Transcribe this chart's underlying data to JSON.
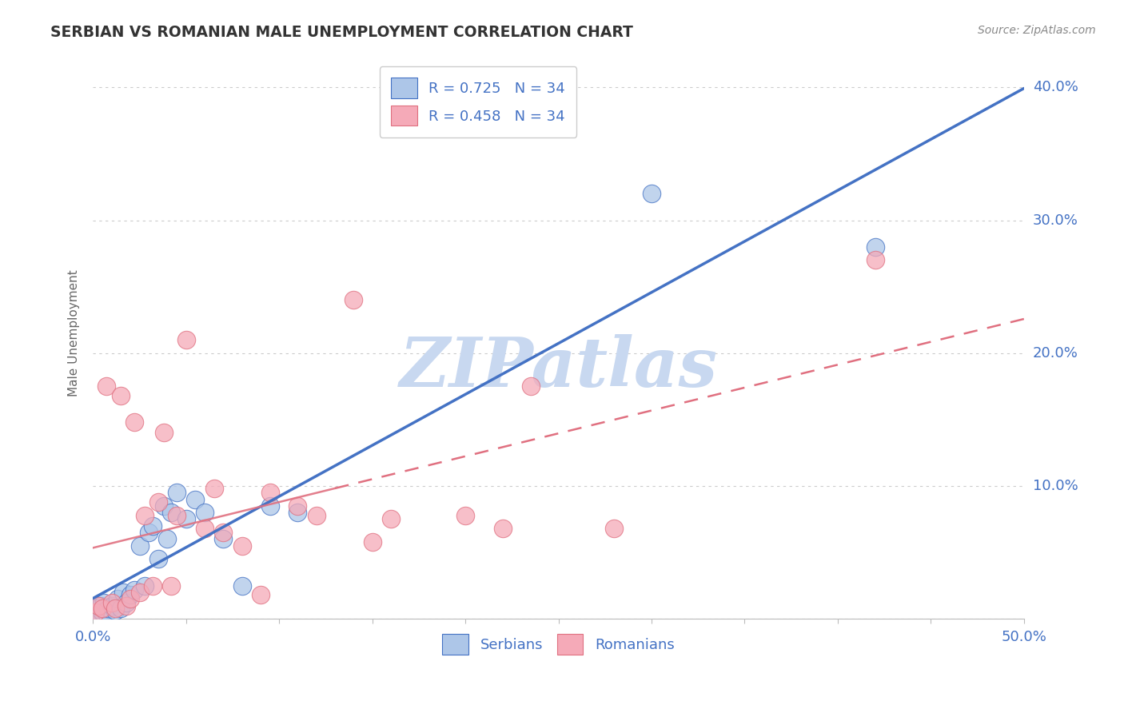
{
  "title": "SERBIAN VS ROMANIAN MALE UNEMPLOYMENT CORRELATION CHART",
  "source": "Source: ZipAtlas.com",
  "ylabel": "Male Unemployment",
  "xlim": [
    0.0,
    0.5
  ],
  "ylim": [
    0.0,
    0.43
  ],
  "ytick_positions": [
    0.0,
    0.1,
    0.2,
    0.3,
    0.4
  ],
  "yticklabels": [
    "",
    "10.0%",
    "20.0%",
    "30.0%",
    "40.0%"
  ],
  "serbian_color": "#adc6e8",
  "romanian_color": "#f5aab8",
  "line_serbian_color": "#4472c4",
  "line_romanian_color": "#e07080",
  "watermark_text": "ZIPatlas",
  "watermark_color": "#c8d8f0",
  "background_color": "#ffffff",
  "grid_color": "#cccccc",
  "tick_label_color": "#4472c4",
  "title_color": "#333333",
  "serbian_x": [
    0.001,
    0.002,
    0.003,
    0.004,
    0.005,
    0.006,
    0.007,
    0.008,
    0.01,
    0.012,
    0.013,
    0.015,
    0.016,
    0.018,
    0.02,
    0.022,
    0.025,
    0.028,
    0.03,
    0.032,
    0.035,
    0.038,
    0.04,
    0.042,
    0.045,
    0.05,
    0.055,
    0.06,
    0.07,
    0.08,
    0.095,
    0.11,
    0.3,
    0.42
  ],
  "serbian_y": [
    0.005,
    0.008,
    0.003,
    0.01,
    0.005,
    0.012,
    0.004,
    0.008,
    0.01,
    0.006,
    0.015,
    0.008,
    0.02,
    0.012,
    0.018,
    0.022,
    0.055,
    0.025,
    0.065,
    0.07,
    0.045,
    0.085,
    0.06,
    0.08,
    0.095,
    0.075,
    0.09,
    0.08,
    0.06,
    0.025,
    0.085,
    0.08,
    0.32,
    0.28
  ],
  "romanian_x": [
    0.001,
    0.003,
    0.005,
    0.007,
    0.01,
    0.012,
    0.015,
    0.018,
    0.02,
    0.022,
    0.025,
    0.028,
    0.032,
    0.035,
    0.038,
    0.042,
    0.045,
    0.05,
    0.06,
    0.065,
    0.07,
    0.08,
    0.09,
    0.095,
    0.11,
    0.12,
    0.14,
    0.15,
    0.16,
    0.2,
    0.22,
    0.235,
    0.28,
    0.42
  ],
  "romanian_y": [
    0.005,
    0.01,
    0.008,
    0.175,
    0.012,
    0.008,
    0.168,
    0.01,
    0.015,
    0.148,
    0.02,
    0.078,
    0.025,
    0.088,
    0.14,
    0.025,
    0.078,
    0.21,
    0.068,
    0.098,
    0.065,
    0.055,
    0.018,
    0.095,
    0.085,
    0.078,
    0.24,
    0.058,
    0.075,
    0.078,
    0.068,
    0.175,
    0.068,
    0.27
  ],
  "serbian_line_x": [
    0.0,
    0.5
  ],
  "romanian_line_x": [
    0.13,
    0.5
  ]
}
